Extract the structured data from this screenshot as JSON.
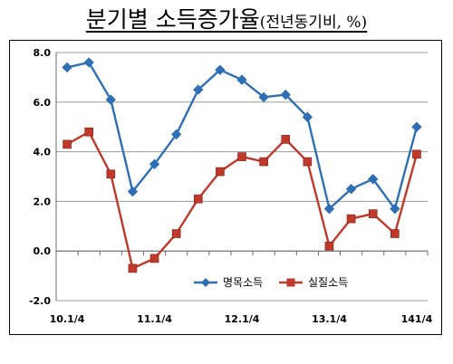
{
  "title": {
    "main": "분기별  소득증가율",
    "sub": "(전년동기비, %)"
  },
  "chart_data": {
    "type": "line",
    "title": "분기별 소득증가율(전년동기비, %)",
    "xlabel": "",
    "ylabel": "",
    "ylim": [
      -2.0,
      8.0
    ],
    "yticks": [
      "-2.0",
      "0.0",
      "2.0",
      "4.0",
      "6.0",
      "8.0"
    ],
    "ytick_values": [
      -2,
      0,
      2,
      4,
      6,
      8
    ],
    "x_labels": [
      {
        "index": 0,
        "label": "10.1/4"
      },
      {
        "index": 4,
        "label": "11.1/4"
      },
      {
        "index": 8,
        "label": "12.1/4"
      },
      {
        "index": 12,
        "label": "13.1/4"
      },
      {
        "index": 16,
        "label": "141/4"
      }
    ],
    "n_points": 17,
    "grid": "horizontal",
    "legend_position": "bottom-center",
    "series": [
      {
        "name": "명목소득",
        "color": "#2e6fb5",
        "marker": "diamond",
        "values": [
          7.4,
          7.6,
          6.1,
          2.4,
          3.5,
          4.7,
          6.5,
          7.3,
          6.9,
          6.2,
          6.3,
          5.4,
          1.7,
          2.5,
          2.9,
          1.7,
          5.0
        ]
      },
      {
        "name": "실질소득",
        "color": "#c0392b",
        "marker": "square",
        "values": [
          4.3,
          4.8,
          3.1,
          -0.7,
          -0.3,
          0.7,
          2.1,
          3.2,
          3.8,
          3.6,
          4.5,
          3.6,
          0.2,
          1.3,
          1.5,
          0.7,
          3.9
        ]
      }
    ]
  }
}
